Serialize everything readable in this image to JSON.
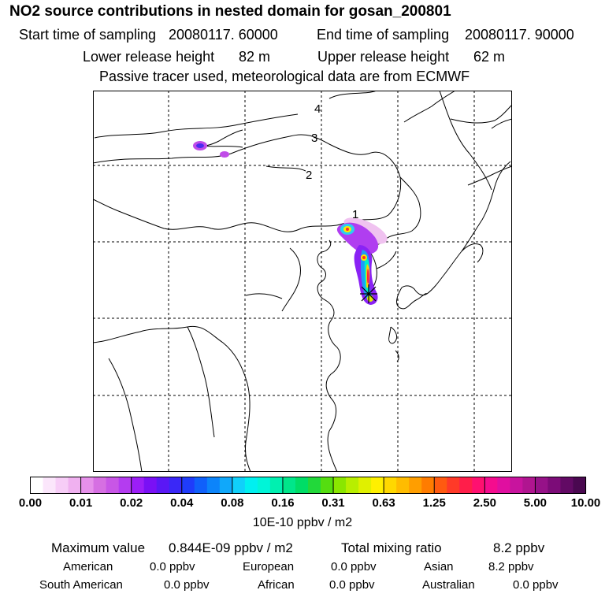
{
  "header": {
    "title": "NO2 source contributions in nested domain for gosan_200801",
    "start_label": "Start time of sampling",
    "start_value": "20080117. 60000",
    "end_label": "End time of sampling",
    "end_value": "20080117. 90000",
    "lower_label": "Lower release height",
    "lower_value": "82 m",
    "upper_label": "Upper release height",
    "upper_value": "62 m",
    "note": "Passive tracer used, meteorological data are from ECMWF"
  },
  "map": {
    "level_labels": [
      "1",
      "2",
      "3",
      "4"
    ],
    "receptor_marker": "gosan-star"
  },
  "colorbar": {
    "tick_labels": [
      "0.00",
      "0.01",
      "0.02",
      "0.04",
      "0.08",
      "0.16",
      "0.31",
      "0.63",
      "1.25",
      "2.50",
      "5.00",
      "10.00"
    ],
    "unit": "10E-10 ppbv / m2",
    "colors": [
      "#ffffff",
      "#fbe6fb",
      "#f7cdf7",
      "#f0b1f0",
      "#e690ea",
      "#d66fe2",
      "#c856e6",
      "#b43cf0",
      "#9c1ef7",
      "#7a10f5",
      "#5a18f5",
      "#3a28f7",
      "#1f3cfa",
      "#1060fa",
      "#0c84fa",
      "#10a8fa",
      "#10d0fa",
      "#00f0f0",
      "#00f5d8",
      "#00f0b0",
      "#00e68a",
      "#00dd66",
      "#22d83a",
      "#55dd10",
      "#8ae600",
      "#b8ee00",
      "#e0f000",
      "#fff000",
      "#ffd800",
      "#ffbc00",
      "#ff9e00",
      "#ff7c00",
      "#ff5a10",
      "#ff3a28",
      "#ff1e4a",
      "#ff1070",
      "#f50c8e",
      "#e00fa0",
      "#c8149e",
      "#b01590",
      "#961288",
      "#7c0c78",
      "#620a64",
      "#4a0850"
    ]
  },
  "stats": {
    "max_label": "Maximum value",
    "max_value": "0.844E-09 ppbv / m2",
    "total_label": "Total mixing ratio",
    "total_value": "8.2 ppbv",
    "regions": [
      {
        "name": "American",
        "value": "0.0 ppbv"
      },
      {
        "name": "European",
        "value": "0.0 ppbv"
      },
      {
        "name": "Asian",
        "value": "8.2 ppbv"
      },
      {
        "name": "South American",
        "value": "0.0 ppbv"
      },
      {
        "name": "African",
        "value": "0.0 ppbv"
      },
      {
        "name": "Australian",
        "value": "0.0 ppbv"
      }
    ]
  }
}
